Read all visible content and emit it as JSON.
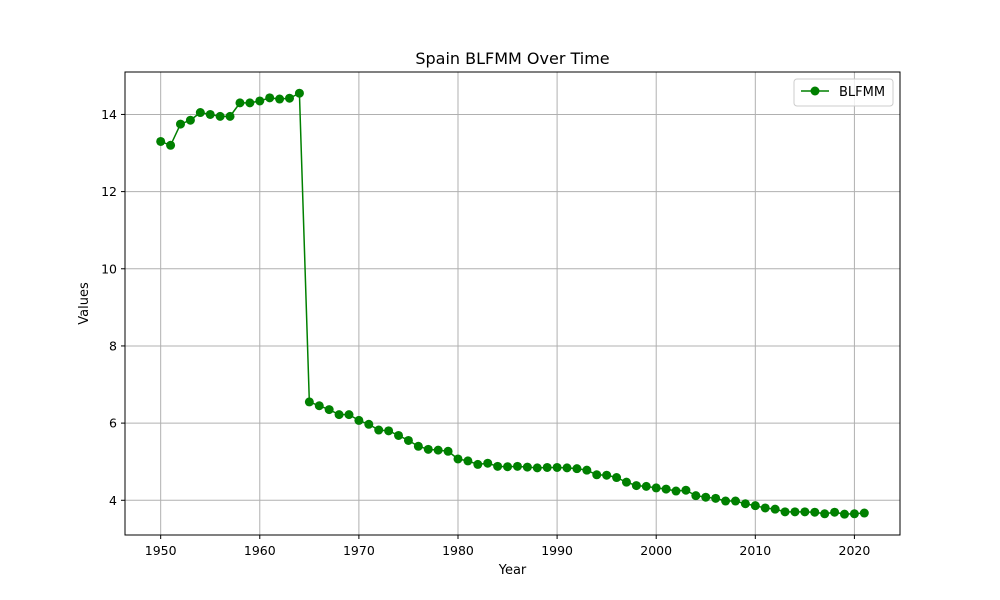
{
  "chart_data": {
    "type": "line",
    "title": "Spain BLFMM Over Time",
    "xlabel": "Year",
    "ylabel": "Values",
    "xlim": [
      1946.4,
      2024.6
    ],
    "ylim": [
      3.1,
      15.1
    ],
    "xticks": [
      1950,
      1960,
      1970,
      1980,
      1990,
      2000,
      2010,
      2020
    ],
    "yticks": [
      4,
      6,
      8,
      10,
      12,
      14
    ],
    "grid": true,
    "legend_position": "top-right",
    "series": [
      {
        "name": "BLFMM",
        "color": "#008000",
        "marker": "circle",
        "x": [
          1950,
          1951,
          1952,
          1953,
          1954,
          1955,
          1956,
          1957,
          1958,
          1959,
          1960,
          1961,
          1962,
          1963,
          1964,
          1965,
          1966,
          1967,
          1968,
          1969,
          1970,
          1971,
          1972,
          1973,
          1974,
          1975,
          1976,
          1977,
          1978,
          1979,
          1980,
          1981,
          1982,
          1983,
          1984,
          1985,
          1986,
          1987,
          1988,
          1989,
          1990,
          1991,
          1992,
          1993,
          1994,
          1995,
          1996,
          1997,
          1998,
          1999,
          2000,
          2001,
          2002,
          2003,
          2004,
          2005,
          2006,
          2007,
          2008,
          2009,
          2010,
          2011,
          2012,
          2013,
          2014,
          2015,
          2016,
          2017,
          2018,
          2019,
          2020,
          2021
        ],
        "values": [
          13.3,
          13.2,
          13.75,
          13.85,
          14.05,
          14.0,
          13.95,
          13.95,
          14.3,
          14.3,
          14.35,
          14.43,
          14.4,
          14.42,
          14.55,
          6.55,
          6.45,
          6.35,
          6.22,
          6.22,
          6.07,
          5.97,
          5.82,
          5.8,
          5.68,
          5.55,
          5.4,
          5.32,
          5.3,
          5.27,
          5.07,
          5.02,
          4.93,
          4.96,
          4.88,
          4.87,
          4.88,
          4.86,
          4.84,
          4.85,
          4.85,
          4.84,
          4.82,
          4.78,
          4.66,
          4.65,
          4.59,
          4.47,
          4.38,
          4.36,
          4.32,
          4.29,
          4.24,
          4.26,
          4.12,
          4.08,
          4.05,
          3.98,
          3.98,
          3.91,
          3.86,
          3.8,
          3.77,
          3.7,
          3.7,
          3.7,
          3.69,
          3.65,
          3.69,
          3.64,
          3.65,
          3.67
        ]
      }
    ]
  }
}
